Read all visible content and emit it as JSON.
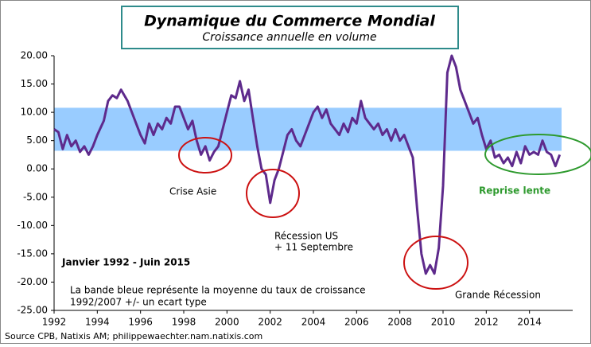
{
  "chart_data": {
    "type": "line",
    "title": "Dynamique du Commerce Mondial",
    "subtitle": "Croissance annuelle  en volume",
    "source": "Source CPB,  Natixis AM; philippewaechter.nam.natixis.com",
    "series": [
      {
        "color": "#5e2a8c",
        "x": [
          1992.0,
          1992.2,
          1992.4,
          1992.6,
          1992.8,
          1993.0,
          1993.2,
          1993.4,
          1993.6,
          1993.8,
          1994.0,
          1994.3,
          1994.5,
          1994.7,
          1994.9,
          1995.1,
          1995.4,
          1995.6,
          1995.8,
          1996.0,
          1996.2,
          1996.4,
          1996.6,
          1996.8,
          1997.0,
          1997.2,
          1997.4,
          1997.6,
          1997.8,
          1998.0,
          1998.2,
          1998.4,
          1998.6,
          1998.8,
          1999.0,
          1999.2,
          1999.4,
          1999.6,
          1999.8,
          2000.0,
          2000.2,
          2000.4,
          2000.6,
          2000.8,
          2001.0,
          2001.2,
          2001.4,
          2001.6,
          2001.8,
          2002.0,
          2002.2,
          2002.4,
          2002.6,
          2002.8,
          2003.0,
          2003.2,
          2003.4,
          2003.6,
          2003.8,
          2004.0,
          2004.2,
          2004.4,
          2004.6,
          2004.8,
          2005.0,
          2005.2,
          2005.4,
          2005.6,
          2005.8,
          2006.0,
          2006.2,
          2006.4,
          2006.6,
          2006.8,
          2007.0,
          2007.2,
          2007.4,
          2007.6,
          2007.8,
          2008.0,
          2008.2,
          2008.4,
          2008.6,
          2008.8,
          2009.0,
          2009.2,
          2009.4,
          2009.6,
          2009.8,
          2010.0,
          2010.2,
          2010.4,
          2010.6,
          2010.8,
          2011.0,
          2011.2,
          2011.4,
          2011.6,
          2011.8,
          2012.0,
          2012.2,
          2012.4,
          2012.6,
          2012.8,
          2013.0,
          2013.2,
          2013.4,
          2013.6,
          2013.8,
          2014.0,
          2014.2,
          2014.4,
          2014.6,
          2014.8,
          2015.0,
          2015.2,
          2015.4
        ],
        "values": [
          7,
          6.5,
          3.5,
          6,
          4,
          5,
          3,
          4,
          2.5,
          4,
          6,
          8.5,
          12,
          13,
          12.5,
          14,
          12,
          10,
          8,
          6,
          4.5,
          8,
          6,
          8,
          7,
          9,
          8,
          11,
          11,
          9,
          7,
          8.5,
          5,
          2.5,
          4,
          1.5,
          3,
          4,
          7,
          10,
          13,
          12.5,
          15.5,
          12,
          14,
          9,
          4,
          0,
          -1,
          -6,
          -2,
          0,
          3,
          6,
          7,
          5,
          4,
          6,
          8,
          10,
          11,
          9,
          10.5,
          8,
          7,
          6,
          8,
          6.5,
          9,
          8,
          12,
          9,
          8,
          7,
          8,
          6,
          7,
          5,
          7,
          5,
          6,
          4,
          2,
          -7,
          -15,
          -18.5,
          -17,
          -18.5,
          -14,
          -3,
          17,
          20,
          18,
          14,
          12,
          10,
          8,
          9,
          6,
          3.5,
          5,
          2,
          2.5,
          1,
          2,
          0.5,
          3,
          1,
          4,
          2.5,
          3,
          2.5,
          5,
          3,
          2.5,
          0.5,
          2.5
        ]
      }
    ],
    "band": [
      3.2,
      10.8
    ],
    "band_color": "#99ccff",
    "xlim": [
      1992,
      2016
    ],
    "ylim": [
      -25,
      20
    ],
    "xticks": [
      1992,
      1994,
      1996,
      1998,
      2000,
      2002,
      2004,
      2006,
      2008,
      2010,
      2012,
      2014
    ],
    "yticks": [
      {
        "value": 20,
        "label": "20.00"
      },
      {
        "value": 15,
        "label": "15.00"
      },
      {
        "value": 10,
        "label": "10.00"
      },
      {
        "value": 5,
        "label": "5.00"
      },
      {
        "value": 0,
        "label": "0.00"
      },
      {
        "value": -5,
        "label": "-5.00"
      },
      {
        "value": -10,
        "label": "-10.00"
      },
      {
        "value": -15,
        "label": "-15.00"
      },
      {
        "value": -20,
        "label": "-20.00"
      },
      {
        "value": -25,
        "label": "-25.00"
      }
    ],
    "annotations": [
      "Crise Asie",
      "Récession US",
      "+ 11 Septembre",
      "Janvier 1992 - Juin 2015",
      "La bande bleue représente la moyenne du taux de croissance",
      "1992/2007 +/- un ecart type",
      "Grande Récession",
      "Reprise lente"
    ]
  }
}
